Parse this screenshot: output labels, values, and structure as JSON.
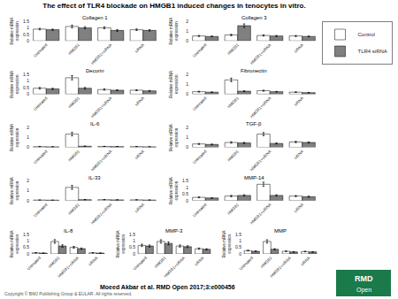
{
  "title": "The effect of TLR4 blockade on HMGB1 induced changes in tenocytes in vitro.",
  "annotations": [
    "Moeed Akbar et al. RMD Open 2017;3:e000456",
    "Copyright © BMJ Publishing Group & EULAR. All rights reserved.",
    "RMD",
    "Open"
  ],
  "chart_data": [
    {
      "type": "bar",
      "title": "Collagen 1",
      "ylabel": "Relative mRNA\nexpression",
      "categories": [
        "Untreated",
        "HMGB1",
        "HMGB1+siRNA",
        "siRNA"
      ],
      "series": [
        {
          "name": "Control",
          "color": "#ffffff",
          "values": [
            0.9,
            1.1,
            1.0,
            0.85
          ],
          "errors": [
            0.06,
            0.1,
            0.08,
            0.06
          ]
        },
        {
          "name": "TLR4 siRNA",
          "color": "#808080",
          "values": [
            0.85,
            1.0,
            0.8,
            0.8
          ],
          "errors": [
            0.05,
            0.08,
            0.07,
            0.05
          ]
        }
      ],
      "ylim": [
        0,
        1.5
      ],
      "yticks": [
        0,
        0.5,
        1,
        1.5
      ],
      "grid": false
    },
    {
      "type": "bar",
      "title": "Collagen 3",
      "ylabel": "Relative mRNA\nexpression",
      "categories": [
        "Untreated",
        "HMGB1",
        "HMGB1+siRNA",
        "siRNA"
      ],
      "series": [
        {
          "name": "Control",
          "color": "#ffffff",
          "values": [
            0.5,
            0.6,
            0.55,
            0.5
          ],
          "errors": [
            0.05,
            0.07,
            0.06,
            0.05
          ]
        },
        {
          "name": "TLR4 siRNA",
          "color": "#808080",
          "values": [
            0.45,
            1.55,
            0.5,
            0.45
          ],
          "errors": [
            0.04,
            0.18,
            0.05,
            0.04
          ]
        }
      ],
      "ylim": [
        0,
        2
      ],
      "yticks": [
        0,
        1,
        2
      ],
      "grid": false,
      "legend": "right"
    },
    {
      "type": "bar",
      "title": "Decorin",
      "ylabel": "Relative mRNA\nexpression",
      "categories": [
        "Untreated",
        "HMGB1",
        "HMGB1+siRNA",
        "siRNA"
      ],
      "series": [
        {
          "name": "Control",
          "color": "#ffffff",
          "values": [
            0.45,
            1.25,
            0.35,
            0.3
          ],
          "errors": [
            0.06,
            0.16,
            0.05,
            0.04
          ]
        },
        {
          "name": "TLR4 siRNA",
          "color": "#808080",
          "values": [
            0.4,
            0.45,
            0.3,
            0.25
          ],
          "errors": [
            0.05,
            0.06,
            0.04,
            0.03
          ]
        }
      ],
      "ylim": [
        0,
        1.5
      ],
      "yticks": [
        0,
        0.5,
        1,
        1.5
      ],
      "grid": false
    },
    {
      "type": "bar",
      "title": "Fibronectin",
      "ylabel": "Relative mRNA\nexpression",
      "categories": [
        "Untreated",
        "HMGB1",
        "HMGB1+siRNA",
        "siRNA"
      ],
      "series": [
        {
          "name": "Control",
          "color": "#ffffff",
          "values": [
            0.25,
            1.45,
            0.35,
            0.2
          ],
          "errors": [
            0.04,
            0.18,
            0.05,
            0.03
          ]
        },
        {
          "name": "TLR4 siRNA",
          "color": "#808080",
          "values": [
            0.2,
            0.3,
            0.25,
            0.15
          ],
          "errors": [
            0.03,
            0.04,
            0.03,
            0.02
          ]
        }
      ],
      "ylim": [
        0,
        2
      ],
      "yticks": [
        0,
        1,
        2
      ],
      "grid": false
    },
    {
      "type": "bar",
      "title": "IL-6",
      "ylabel": "Relative mRNA\nexpression",
      "categories": [
        "Untreated",
        "HMGB1",
        "HMGB1+siRNA",
        "siRNA"
      ],
      "series": [
        {
          "name": "Control",
          "color": "#ffffff",
          "values": [
            0.08,
            1.35,
            0.1,
            0.08
          ],
          "errors": [
            0.01,
            0.18,
            0.01,
            0.01
          ]
        },
        {
          "name": "TLR4 siRNA",
          "color": "#808080",
          "values": [
            0.06,
            0.12,
            0.08,
            0.06
          ],
          "errors": [
            0.01,
            0.02,
            0.01,
            0.01
          ]
        }
      ],
      "ylim": [
        0,
        2
      ],
      "yticks": [
        0,
        1,
        2
      ],
      "grid": false
    },
    {
      "type": "bar",
      "title": "TGF-β",
      "ylabel": "Relative mRNA\nexpression",
      "categories": [
        "Untreated",
        "HMGB1",
        "HMGB1+siRNA",
        "siRNA"
      ],
      "series": [
        {
          "name": "Control",
          "color": "#ffffff",
          "values": [
            0.35,
            0.5,
            1.35,
            0.55
          ],
          "errors": [
            0.05,
            0.07,
            0.16,
            0.07
          ]
        },
        {
          "name": "TLR4 siRNA",
          "color": "#808080",
          "values": [
            0.3,
            0.45,
            0.4,
            0.5
          ],
          "errors": [
            0.04,
            0.06,
            0.05,
            0.06
          ]
        }
      ],
      "ylim": [
        0,
        2
      ],
      "yticks": [
        0,
        1,
        2
      ],
      "grid": false
    },
    {
      "type": "bar",
      "title": "IL-33",
      "ylabel": "Relative mRNA\nexpression",
      "categories": [
        "Untreated",
        "HMGB1",
        "HMGB1+siRNA",
        "siRNA"
      ],
      "series": [
        {
          "name": "Control",
          "color": "#ffffff",
          "values": [
            0.06,
            1.35,
            0.1,
            0.08
          ],
          "errors": [
            0.01,
            0.2,
            0.01,
            0.01
          ]
        },
        {
          "name": "TLR4 siRNA",
          "color": "#808080",
          "values": [
            0.05,
            0.1,
            0.08,
            0.06
          ],
          "errors": [
            0.01,
            0.02,
            0.01,
            0.01
          ]
        }
      ],
      "ylim": [
        0,
        2
      ],
      "yticks": [
        0,
        1,
        2
      ],
      "grid": false
    },
    {
      "type": "bar",
      "title": "MMP-14",
      "ylabel": "Relative mRNA\nexpression",
      "categories": [
        "Untreated",
        "HMGB1",
        "HMGB1+siRNA",
        "siRNA"
      ],
      "series": [
        {
          "name": "Control",
          "color": "#ffffff",
          "values": [
            0.25,
            0.35,
            1.25,
            0.35
          ],
          "errors": [
            0.03,
            0.05,
            0.16,
            0.04
          ]
        },
        {
          "name": "TLR4 siRNA",
          "color": "#808080",
          "values": [
            0.2,
            0.4,
            0.4,
            0.3
          ],
          "errors": [
            0.02,
            0.05,
            0.05,
            0.04
          ]
        }
      ],
      "ylim": [
        0,
        1.5
      ],
      "yticks": [
        0,
        0.5,
        1,
        1.5
      ],
      "grid": false
    },
    {
      "type": "bar",
      "title": "IL-8",
      "ylabel": "Relative mRNA\nexpression",
      "categories": [
        "Untreated",
        "HMGB1",
        "HMGB1+siRNA",
        "siRNA"
      ],
      "series": [
        {
          "name": "Control",
          "color": "#ffffff",
          "values": [
            0.08,
            0.95,
            0.5,
            0.08
          ],
          "errors": [
            0.01,
            0.14,
            0.07,
            0.01
          ]
        },
        {
          "name": "TLR4 siRNA",
          "color": "#808080",
          "values": [
            0.06,
            0.6,
            0.4,
            0.06
          ],
          "errors": [
            0.01,
            0.09,
            0.05,
            0.01
          ]
        }
      ],
      "ylim": [
        0,
        1.5
      ],
      "yticks": [
        0,
        0.5,
        1,
        1.5
      ],
      "grid": false
    },
    {
      "type": "bar",
      "title": "MMP-3",
      "ylabel": "Relative mRNA\nexpression",
      "categories": [
        "Untreated",
        "HMGB1",
        "HMGB1+siRNA",
        "siRNA"
      ],
      "series": [
        {
          "name": "Control",
          "color": "#ffffff",
          "values": [
            0.65,
            0.95,
            0.6,
            0.4
          ],
          "errors": [
            0.09,
            0.13,
            0.08,
            0.05
          ]
        },
        {
          "name": "TLR4 siRNA",
          "color": "#808080",
          "values": [
            0.6,
            0.8,
            0.55,
            0.35
          ],
          "errors": [
            0.08,
            0.11,
            0.07,
            0.04
          ]
        }
      ],
      "ylim": [
        0,
        1.5
      ],
      "yticks": [
        0,
        0.5,
        1,
        1.5
      ],
      "grid": false
    },
    {
      "type": "bar",
      "title": "MMP",
      "ylabel": "Relative mRNA\nexpression",
      "categories": [
        "Untreated",
        "HMGB1",
        "HMGB1+siRNA",
        "siRNA"
      ],
      "series": [
        {
          "name": "Control",
          "color": "#ffffff",
          "values": [
            0.25,
            0.95,
            0.2,
            0.18
          ],
          "errors": [
            0.03,
            0.13,
            0.02,
            0.02
          ]
        },
        {
          "name": "TLR4 siRNA",
          "color": "#808080",
          "values": [
            0.2,
            0.35,
            0.15,
            0.15
          ],
          "errors": [
            0.02,
            0.05,
            0.02,
            0.02
          ]
        }
      ],
      "ylim": [
        0,
        1.5
      ],
      "yticks": [
        0,
        0.5,
        1,
        1.5
      ],
      "grid": false
    }
  ]
}
